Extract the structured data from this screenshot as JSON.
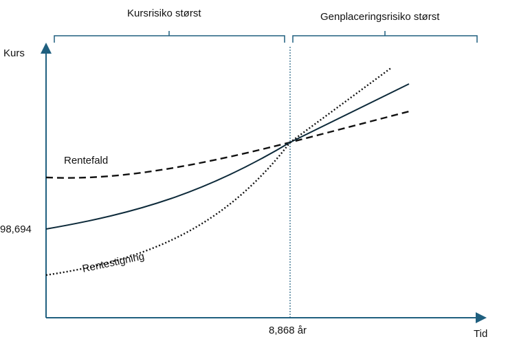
{
  "regions": {
    "left_label": "Kursrisiko størst",
    "right_label": "Genplaceringsrisiko størst"
  },
  "axes": {
    "y_label": "Kurs",
    "x_label": "Tid",
    "y_tick": "98,694",
    "x_tick": "8,868 år"
  },
  "curves": {
    "fall_label": "Rentefald",
    "rise_label": "Rentestigning"
  },
  "colors": {
    "axis": "#1f5f7f",
    "bracket": "#1f5f7f",
    "curve": "#0d2a3a"
  }
}
